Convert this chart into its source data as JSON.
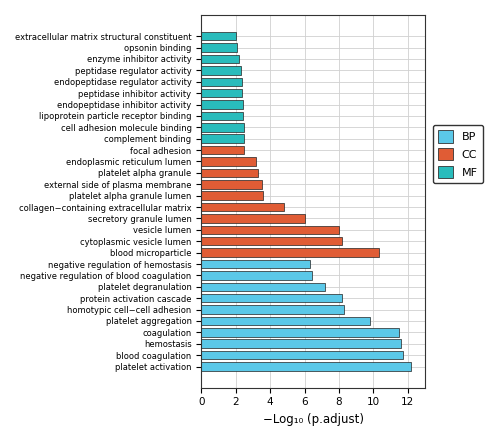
{
  "categories": [
    "extracellular matrix structural constituent",
    "opsonin binding",
    "enzyme inhibitor activity",
    "peptidase regulator activity",
    "endopeptidase regulator activity",
    "peptidase inhibitor activity",
    "endopeptidase inhibitor activity",
    "lipoprotein particle receptor binding",
    "cell adhesion molecule binding",
    "complement binding",
    "focal adhesion",
    "endoplasmic reticulum lumen",
    "platelet alpha granule",
    "external side of plasma membrane",
    "platelet alpha granule lumen",
    "collagen−containing extracellular matrix",
    "secretory granule lumen",
    "vesicle lumen",
    "cytoplasmic vesicle lumen",
    "blood microparticle",
    "negative regulation of hemostasis",
    "negative regulation of blood coagulation",
    "platelet degranulation",
    "protein activation cascade",
    "homotypic cell−cell adhesion",
    "platelet aggregation",
    "coagulation",
    "hemostasis",
    "blood coagulation",
    "platelet activation"
  ],
  "values": [
    2.0,
    2.1,
    2.2,
    2.3,
    2.35,
    2.35,
    2.4,
    2.4,
    2.45,
    2.5,
    2.5,
    3.2,
    3.3,
    3.5,
    3.6,
    4.8,
    6.0,
    8.0,
    8.2,
    10.3,
    6.3,
    6.4,
    7.2,
    8.2,
    8.3,
    9.8,
    11.5,
    11.6,
    11.7,
    12.2
  ],
  "colors": [
    "#29BCBC",
    "#29BCBC",
    "#29BCBC",
    "#29BCBC",
    "#29BCBC",
    "#29BCBC",
    "#29BCBC",
    "#29BCBC",
    "#29BCBC",
    "#29BCBC",
    "#E05C35",
    "#E05C35",
    "#E05C35",
    "#E05C35",
    "#E05C35",
    "#E05C35",
    "#E05C35",
    "#E05C35",
    "#E05C35",
    "#E05C35",
    "#5BC8E8",
    "#5BC8E8",
    "#5BC8E8",
    "#5BC8E8",
    "#5BC8E8",
    "#5BC8E8",
    "#5BC8E8",
    "#5BC8E8",
    "#5BC8E8",
    "#5BC8E8"
  ],
  "legend_labels": [
    "BP",
    "CC",
    "MF"
  ],
  "legend_colors": [
    "#5BC8E8",
    "#E05C35",
    "#29BCBC"
  ],
  "xlabel": "−Log₁₀ (p.adjust)",
  "xlim": [
    0,
    13
  ],
  "xticks": [
    0,
    2,
    4,
    6,
    8,
    10,
    12
  ],
  "background_color": "#FFFFFF",
  "grid_color": "#D0D0D0",
  "bar_edgecolor": "#222222",
  "bar_linewidth": 0.5,
  "figsize": [
    5.0,
    4.41
  ],
  "dpi": 100
}
